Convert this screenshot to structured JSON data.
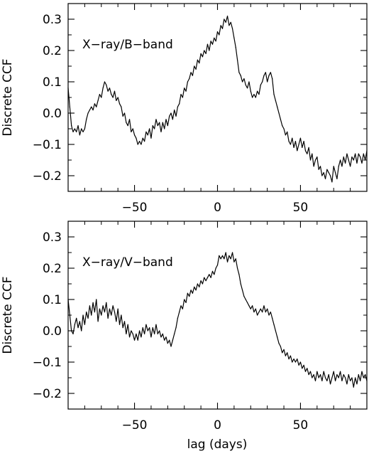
{
  "chart_data": [
    {
      "type": "line",
      "title": "",
      "annotation": "X−ray/B−band",
      "xlabel": "",
      "ylabel": "Discrete CCF",
      "xlim": [
        -90,
        90
      ],
      "ylim": [
        -0.25,
        0.35
      ],
      "xticks": [
        -50,
        0,
        50
      ],
      "xtick_labels": [
        "−50",
        "0",
        "50"
      ],
      "yticks": [
        -0.2,
        -0.1,
        0.0,
        0.1,
        0.2,
        0.3
      ],
      "ytick_labels": [
        "−0.2",
        "−0.1",
        "0.0",
        "0.1",
        "0.2",
        "0.3"
      ],
      "grid": false,
      "series": [
        {
          "x": [
            -90,
            -89,
            -88,
            -87,
            -86,
            -85,
            -84,
            -83,
            -82,
            -81,
            -80,
            -79,
            -78,
            -77,
            -76,
            -75,
            -74,
            -73,
            -72,
            -71,
            -70,
            -69,
            -68,
            -67,
            -66,
            -65,
            -64,
            -63,
            -62,
            -61,
            -60,
            -59,
            -58,
            -57,
            -56,
            -55,
            -54,
            -53,
            -52,
            -51,
            -50,
            -49,
            -48,
            -47,
            -46,
            -45,
            -44,
            -43,
            -42,
            -41,
            -40,
            -39,
            -38,
            -37,
            -36,
            -35,
            -34,
            -33,
            -32,
            -31,
            -30,
            -29,
            -28,
            -27,
            -26,
            -25,
            -24,
            -23,
            -22,
            -21,
            -20,
            -19,
            -18,
            -17,
            -16,
            -15,
            -14,
            -13,
            -12,
            -11,
            -10,
            -9,
            -8,
            -7,
            -6,
            -5,
            -4,
            -3,
            -2,
            -1,
            0,
            1,
            2,
            3,
            4,
            5,
            6,
            7,
            8,
            9,
            10,
            11,
            12,
            13,
            14,
            15,
            16,
            17,
            18,
            19,
            20,
            21,
            22,
            23,
            24,
            25,
            26,
            27,
            28,
            29,
            30,
            31,
            32,
            33,
            34,
            35,
            36,
            37,
            38,
            39,
            40,
            41,
            42,
            43,
            44,
            45,
            46,
            47,
            48,
            49,
            50,
            51,
            52,
            53,
            54,
            55,
            56,
            57,
            58,
            59,
            60,
            61,
            62,
            63,
            64,
            65,
            66,
            67,
            68,
            69,
            70,
            71,
            72,
            73,
            74,
            75,
            76,
            77,
            78,
            79,
            80,
            81,
            82,
            83,
            84,
            85,
            86,
            87,
            88,
            89,
            90
          ],
          "y": [
            0.08,
            0.02,
            -0.04,
            -0.06,
            -0.05,
            -0.06,
            -0.04,
            -0.07,
            -0.05,
            -0.06,
            -0.05,
            -0.02,
            0.0,
            0.01,
            0.02,
            0.01,
            0.03,
            0.02,
            0.04,
            0.06,
            0.05,
            0.08,
            0.1,
            0.09,
            0.07,
            0.08,
            0.06,
            0.05,
            0.07,
            0.04,
            0.05,
            0.03,
            0.02,
            -0.01,
            0.0,
            -0.03,
            -0.04,
            -0.02,
            -0.06,
            -0.05,
            -0.07,
            -0.08,
            -0.1,
            -0.09,
            -0.1,
            -0.08,
            -0.09,
            -0.06,
            -0.07,
            -0.05,
            -0.08,
            -0.04,
            -0.05,
            -0.02,
            -0.04,
            -0.03,
            -0.06,
            -0.03,
            -0.05,
            -0.02,
            -0.04,
            -0.01,
            0.0,
            -0.02,
            0.01,
            -0.01,
            0.02,
            0.03,
            0.06,
            0.05,
            0.08,
            0.07,
            0.1,
            0.11,
            0.13,
            0.12,
            0.15,
            0.14,
            0.17,
            0.16,
            0.19,
            0.18,
            0.2,
            0.19,
            0.22,
            0.2,
            0.23,
            0.22,
            0.24,
            0.23,
            0.26,
            0.25,
            0.28,
            0.27,
            0.3,
            0.29,
            0.31,
            0.28,
            0.29,
            0.27,
            0.24,
            0.21,
            0.17,
            0.13,
            0.12,
            0.1,
            0.11,
            0.09,
            0.08,
            0.1,
            0.07,
            0.05,
            0.06,
            0.05,
            0.07,
            0.06,
            0.09,
            0.1,
            0.12,
            0.13,
            0.1,
            0.12,
            0.13,
            0.11,
            0.06,
            0.04,
            0.02,
            0.0,
            -0.02,
            -0.04,
            -0.05,
            -0.07,
            -0.06,
            -0.09,
            -0.1,
            -0.08,
            -0.11,
            -0.09,
            -0.12,
            -0.1,
            -0.08,
            -0.11,
            -0.09,
            -0.12,
            -0.13,
            -0.11,
            -0.15,
            -0.13,
            -0.17,
            -0.15,
            -0.14,
            -0.18,
            -0.17,
            -0.2,
            -0.19,
            -0.21,
            -0.18,
            -0.19,
            -0.2,
            -0.22,
            -0.17,
            -0.19,
            -0.21,
            -0.17,
            -0.15,
            -0.17,
            -0.14,
            -0.16,
            -0.13,
            -0.15,
            -0.17,
            -0.14,
            -0.15,
            -0.13,
            -0.16,
            -0.13,
            -0.14,
            -0.16,
            -0.13,
            -0.15,
            -0.12
          ]
        }
      ]
    },
    {
      "type": "line",
      "title": "",
      "annotation": "X−ray/V−band",
      "xlabel": "lag (days)",
      "ylabel": "Discrete CCF",
      "xlim": [
        -90,
        90
      ],
      "ylim": [
        -0.25,
        0.35
      ],
      "xticks": [
        -50,
        0,
        50
      ],
      "xtick_labels": [
        "−50",
        "0",
        "50"
      ],
      "yticks": [
        -0.2,
        -0.1,
        0.0,
        0.1,
        0.2,
        0.3
      ],
      "ytick_labels": [
        "−0.2",
        "−0.1",
        "0.0",
        "0.1",
        "0.2",
        "0.3"
      ],
      "grid": false,
      "series": [
        {
          "x": [
            -90,
            -89,
            -88,
            -87,
            -86,
            -85,
            -84,
            -83,
            -82,
            -81,
            -80,
            -79,
            -78,
            -77,
            -76,
            -75,
            -74,
            -73,
            -72,
            -71,
            -70,
            -69,
            -68,
            -67,
            -66,
            -65,
            -64,
            -63,
            -62,
            -61,
            -60,
            -59,
            -58,
            -57,
            -56,
            -55,
            -54,
            -53,
            -52,
            -51,
            -50,
            -49,
            -48,
            -47,
            -46,
            -45,
            -44,
            -43,
            -42,
            -41,
            -40,
            -39,
            -38,
            -37,
            -36,
            -35,
            -34,
            -33,
            -32,
            -31,
            -30,
            -29,
            -28,
            -27,
            -26,
            -25,
            -24,
            -23,
            -22,
            -21,
            -20,
            -19,
            -18,
            -17,
            -16,
            -15,
            -14,
            -13,
            -12,
            -11,
            -10,
            -9,
            -8,
            -7,
            -6,
            -5,
            -4,
            -3,
            -2,
            -1,
            0,
            1,
            2,
            3,
            4,
            5,
            6,
            7,
            8,
            9,
            10,
            11,
            12,
            13,
            14,
            15,
            16,
            17,
            18,
            19,
            20,
            21,
            22,
            23,
            24,
            25,
            26,
            27,
            28,
            29,
            30,
            31,
            32,
            33,
            34,
            35,
            36,
            37,
            38,
            39,
            40,
            41,
            42,
            43,
            44,
            45,
            46,
            47,
            48,
            49,
            50,
            51,
            52,
            53,
            54,
            55,
            56,
            57,
            58,
            59,
            60,
            61,
            62,
            63,
            64,
            65,
            66,
            67,
            68,
            69,
            70,
            71,
            72,
            73,
            74,
            75,
            76,
            77,
            78,
            79,
            80,
            81,
            82,
            83,
            84,
            85,
            86,
            87,
            88,
            89,
            90
          ],
          "y": [
            0.1,
            0.05,
            0.0,
            -0.01,
            0.02,
            0.04,
            0.01,
            0.03,
            0.0,
            0.05,
            0.02,
            0.06,
            0.04,
            0.08,
            0.05,
            0.09,
            0.06,
            0.1,
            0.03,
            0.07,
            0.05,
            0.08,
            0.06,
            0.09,
            0.04,
            0.07,
            0.05,
            0.08,
            0.06,
            0.03,
            0.07,
            0.02,
            0.05,
            0.01,
            0.03,
            -0.01,
            0.02,
            -0.02,
            0.0,
            -0.01,
            -0.03,
            -0.01,
            -0.03,
            0.0,
            -0.02,
            0.01,
            -0.01,
            0.02,
            0.0,
            0.01,
            -0.02,
            0.01,
            -0.01,
            0.02,
            -0.01,
            0.0,
            -0.02,
            -0.01,
            -0.03,
            -0.02,
            -0.04,
            -0.03,
            -0.05,
            -0.03,
            -0.01,
            0.01,
            0.04,
            0.06,
            0.08,
            0.07,
            0.1,
            0.09,
            0.12,
            0.11,
            0.13,
            0.12,
            0.14,
            0.13,
            0.15,
            0.14,
            0.16,
            0.15,
            0.17,
            0.16,
            0.17,
            0.18,
            0.17,
            0.19,
            0.18,
            0.2,
            0.21,
            0.24,
            0.23,
            0.24,
            0.23,
            0.25,
            0.22,
            0.24,
            0.23,
            0.25,
            0.22,
            0.23,
            0.2,
            0.18,
            0.15,
            0.13,
            0.11,
            0.1,
            0.09,
            0.08,
            0.07,
            0.08,
            0.06,
            0.07,
            0.05,
            0.06,
            0.07,
            0.06,
            0.08,
            0.06,
            0.07,
            0.05,
            0.06,
            0.04,
            0.02,
            0.0,
            -0.02,
            -0.04,
            -0.05,
            -0.07,
            -0.06,
            -0.08,
            -0.07,
            -0.09,
            -0.08,
            -0.1,
            -0.09,
            -0.1,
            -0.09,
            -0.11,
            -0.1,
            -0.12,
            -0.11,
            -0.13,
            -0.12,
            -0.14,
            -0.13,
            -0.15,
            -0.14,
            -0.16,
            -0.13,
            -0.15,
            -0.14,
            -0.16,
            -0.13,
            -0.15,
            -0.16,
            -0.14,
            -0.17,
            -0.15,
            -0.13,
            -0.16,
            -0.14,
            -0.15,
            -0.13,
            -0.16,
            -0.14,
            -0.15,
            -0.17,
            -0.14,
            -0.16,
            -0.15,
            -0.18,
            -0.15,
            -0.17,
            -0.14,
            -0.16,
            -0.13,
            -0.15,
            -0.14,
            -0.16
          ]
        }
      ]
    }
  ]
}
